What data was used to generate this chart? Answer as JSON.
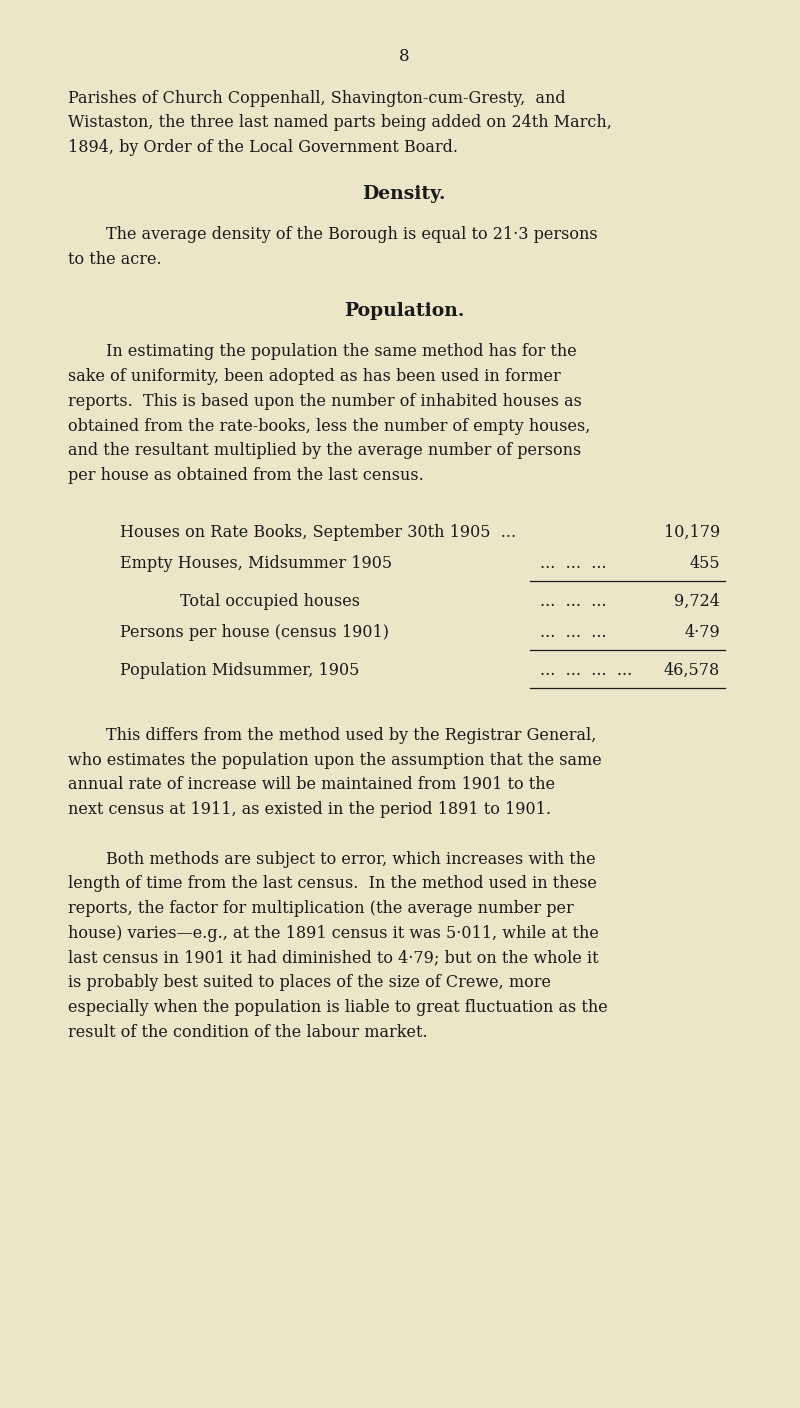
{
  "background_color": "#ede5c8",
  "page_number": "8",
  "text_color": "#1a1a1a",
  "font_size_body": 11.5,
  "font_size_heading": 13.5,
  "font_size_page_num": 12,
  "para1_lines": [
    "Parishes of Church Coppenhall, Shavington-cum-Gresty,  and",
    "Wistaston, the three last named parts being added on 24th March,",
    "1894, by Order of the Local Government Board."
  ],
  "heading_density": "Density.",
  "density_line1": "The average density of the Borough is equal to 21·3 persons",
  "density_line2": "to the acre.",
  "heading_population": "Population.",
  "pop1_lines": [
    "In estimating the population the same method has for the",
    "sake of uniformity, been adopted as has been used in former",
    "reports.  This is based upon the number of inhabited houses as",
    "obtained from the rate-books, less the number of empty houses,",
    "and the resultant multiplied by the average number of persons",
    "per house as obtained from the last census."
  ],
  "table": [
    {
      "label": "Houses on Rate Books, September 30th 1905  ...",
      "dots": "",
      "value": "10,179",
      "indent": 0,
      "rule_before": false,
      "rule_after": false
    },
    {
      "label": "Empty Houses, Midsummer 1905",
      "dots": "...  ...  ...",
      "value": "455",
      "indent": 0,
      "rule_before": false,
      "rule_after": true
    },
    {
      "label": "Total occupied houses",
      "dots": "...  ...  ...",
      "value": "9,724",
      "indent": 1,
      "rule_before": false,
      "rule_after": false
    },
    {
      "label": "Persons per house (census 1901)",
      "dots": "...  ...  ...",
      "value": "4·79",
      "indent": 0,
      "rule_before": false,
      "rule_after": true
    },
    {
      "label": "Population Midsummer, 1905",
      "dots": "...  ...  ...  ...",
      "value": "46,578",
      "indent": 0,
      "rule_before": false,
      "rule_after": true
    }
  ],
  "pop2_lines": [
    "This differs from the method used by the Registrar General,",
    "who estimates the population upon the assumption that the same",
    "annual rate of increase will be maintained from 1901 to the",
    "next census at 1911, as existed in the period 1891 to 1901."
  ],
  "pop3_lines": [
    "Both methods are subject to error, which increases with the",
    "length of time from the last census.  In the method used in these",
    "reports, the factor for multiplication (the average number per",
    "house) varies—e.g., at the 1891 census it was 5·011, while at the",
    "last census in 1901 it had diminished to 4·79; but on the whole it",
    "is probably best suited to places of the size of Crewe, more",
    "especially when the population is liable to great fluctuation as the",
    "result of the condition of the labour market."
  ]
}
